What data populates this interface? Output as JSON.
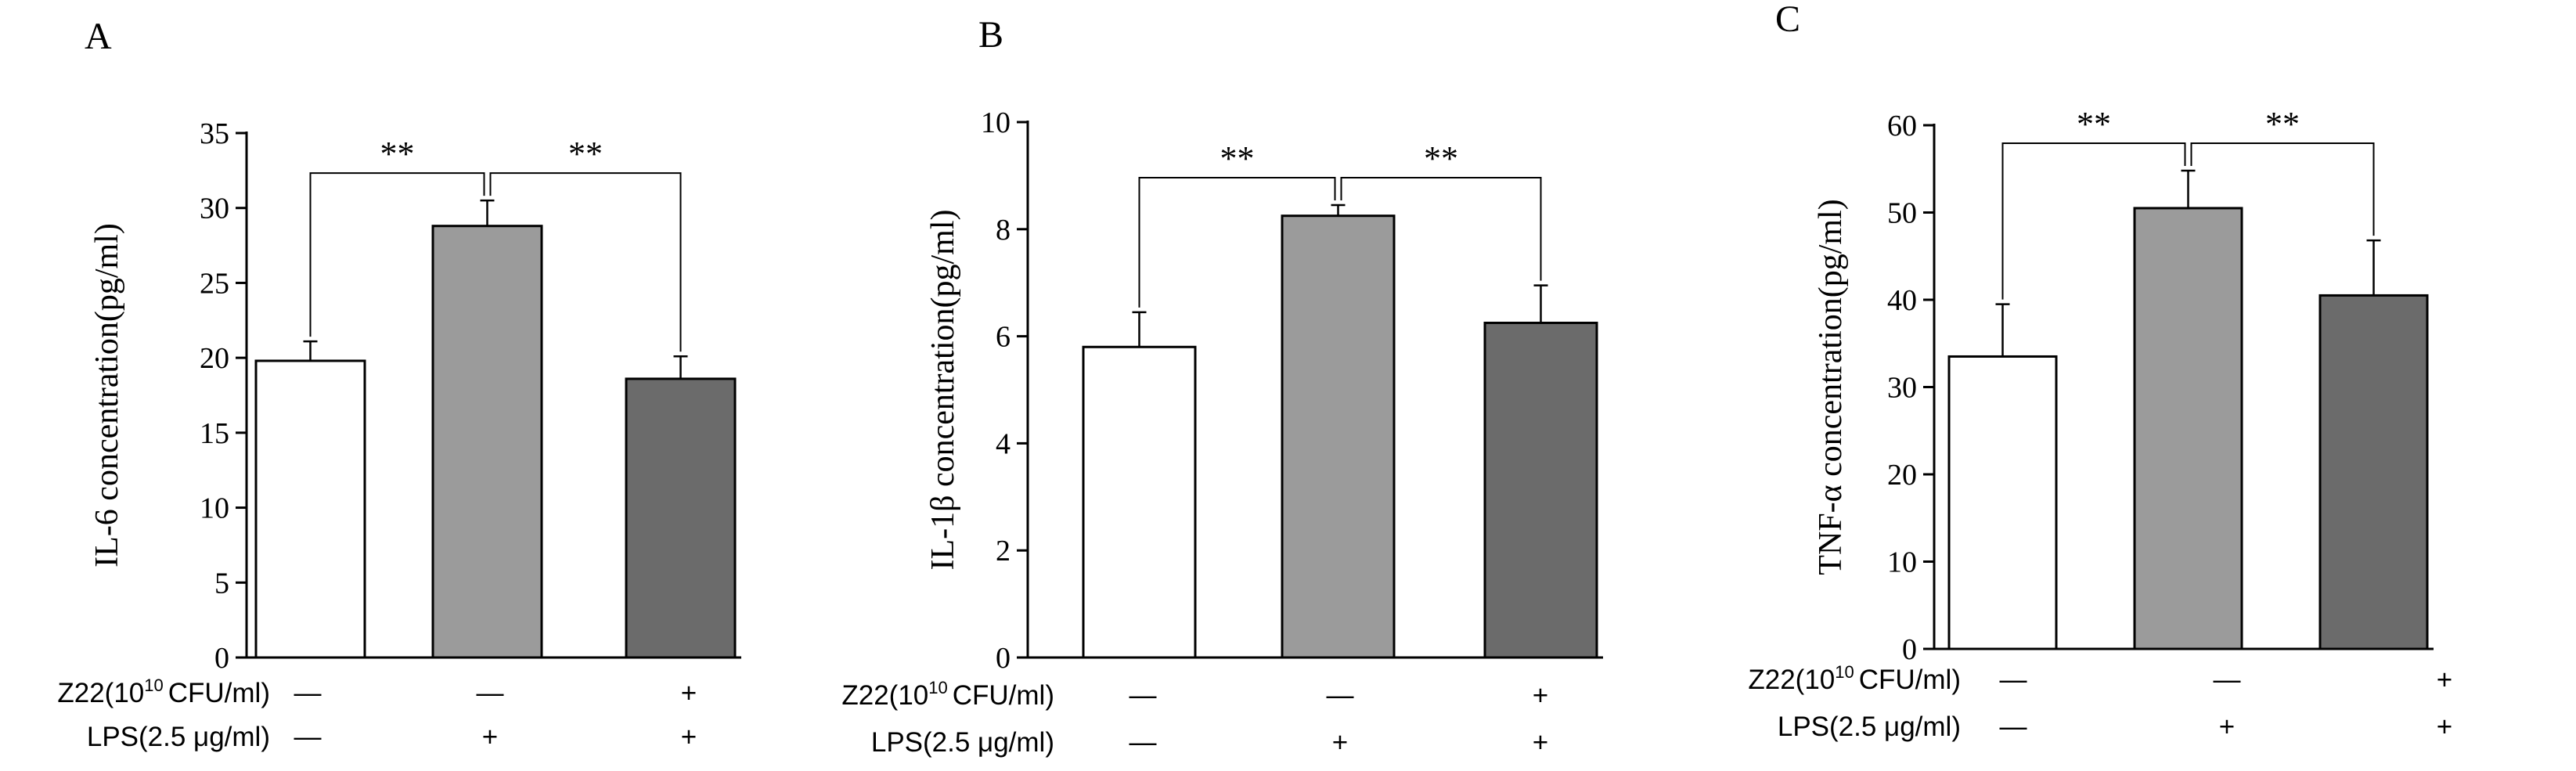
{
  "chart_data": [
    {
      "type": "bar",
      "panel_label": "A",
      "ylabel": "IL-6 concentration(pg/ml)",
      "ylim": [
        0,
        35
      ],
      "yticks": [
        0,
        5,
        10,
        15,
        20,
        25,
        30,
        35
      ],
      "values": [
        19.8,
        28.8,
        18.6
      ],
      "errors": [
        1.3,
        1.7,
        1.5
      ],
      "bar_colors": [
        "#ffffff",
        "#9b9b9b",
        "#6b6b6b"
      ],
      "significance": [
        {
          "from": 0,
          "to": 1,
          "label": "**"
        },
        {
          "from": 1,
          "to": 2,
          "label": "**"
        }
      ],
      "conditions": [
        {
          "label": "Z22(10",
          "sup": "10",
          "suffix": "CFU/ml)",
          "marks": [
            "—",
            "—",
            "+"
          ]
        },
        {
          "label": "LPS(2.5 μg/ml)",
          "marks": [
            "—",
            "+",
            "+"
          ]
        }
      ]
    },
    {
      "type": "bar",
      "panel_label": "B",
      "ylabel": "IL-1β concentration(pg/ml)",
      "ylim": [
        0,
        10
      ],
      "yticks": [
        0,
        2,
        4,
        6,
        8,
        10
      ],
      "values": [
        5.8,
        8.25,
        6.25
      ],
      "errors": [
        0.65,
        0.2,
        0.7
      ],
      "bar_colors": [
        "#ffffff",
        "#9b9b9b",
        "#6b6b6b"
      ],
      "significance": [
        {
          "from": 0,
          "to": 1,
          "label": "**"
        },
        {
          "from": 1,
          "to": 2,
          "label": "**"
        }
      ],
      "conditions": [
        {
          "label": "Z22(10",
          "sup": "10",
          "suffix": "CFU/ml)",
          "marks": [
            "—",
            "—",
            "+"
          ]
        },
        {
          "label": "LPS(2.5 μg/ml)",
          "marks": [
            "—",
            "+",
            "+"
          ]
        }
      ]
    },
    {
      "type": "bar",
      "panel_label": "C",
      "ylabel": "TNF-α concentration(pg/ml)",
      "ylim": [
        0,
        60
      ],
      "yticks": [
        0,
        10,
        20,
        30,
        40,
        50,
        60
      ],
      "values": [
        33.5,
        50.5,
        40.5
      ],
      "errors": [
        6.0,
        4.3,
        6.3
      ],
      "bar_colors": [
        "#ffffff",
        "#9b9b9b",
        "#6b6b6b"
      ],
      "significance": [
        {
          "from": 0,
          "to": 1,
          "label": "**"
        },
        {
          "from": 1,
          "to": 2,
          "label": "**"
        }
      ],
      "conditions": [
        {
          "label": "Z22(10",
          "sup": "10",
          "suffix": "CFU/ml)",
          "marks": [
            "—",
            "—",
            "+"
          ]
        },
        {
          "label": "LPS(2.5 μg/ml)",
          "marks": [
            "—",
            "+",
            "+"
          ]
        }
      ]
    }
  ]
}
